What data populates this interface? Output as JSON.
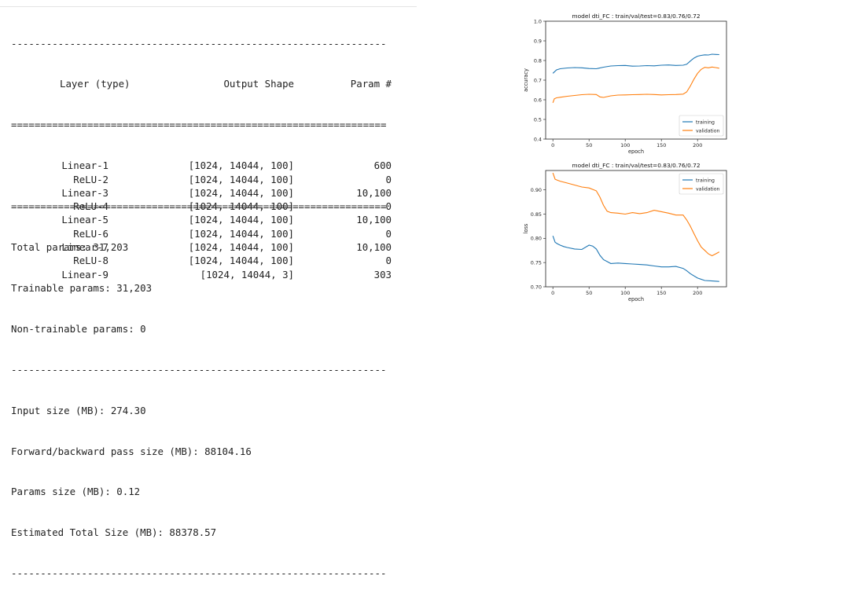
{
  "summary": {
    "sep_dash": "----------------------------------------------------------------",
    "sep_eq": "================================================================",
    "header": {
      "layer": "Layer (type)",
      "shape": "Output Shape",
      "param": "Param #"
    },
    "rows": [
      {
        "layer": "Linear-1",
        "shape": "[1024, 14044, 100]",
        "param": "600"
      },
      {
        "layer": "ReLU-2",
        "shape": "[1024, 14044, 100]",
        "param": "0"
      },
      {
        "layer": "Linear-3",
        "shape": "[1024, 14044, 100]",
        "param": "10,100"
      },
      {
        "layer": "ReLU-4",
        "shape": "[1024, 14044, 100]",
        "param": "0"
      },
      {
        "layer": "Linear-5",
        "shape": "[1024, 14044, 100]",
        "param": "10,100"
      },
      {
        "layer": "ReLU-6",
        "shape": "[1024, 14044, 100]",
        "param": "0"
      },
      {
        "layer": "Linear-7",
        "shape": "[1024, 14044, 100]",
        "param": "10,100"
      },
      {
        "layer": "ReLU-8",
        "shape": "[1024, 14044, 100]",
        "param": "0"
      },
      {
        "layer": "Linear-9",
        "shape": "[1024, 14044, 3]",
        "param": "303"
      }
    ],
    "totals": [
      "Total params: 31,203",
      "Trainable params: 31,203",
      "Non-trainable params: 0"
    ],
    "sizes": [
      "Input size (MB): 274.30",
      "Forward/backward pass size (MB): 88104.16",
      "Params size (MB): 0.12",
      "Estimated Total Size (MB): 88378.57"
    ]
  },
  "chart_data": [
    {
      "type": "line",
      "title": "model dti_FC : train/val/test=0.83/0.76/0.72",
      "xlabel": "epoch",
      "ylabel": "accuracy",
      "xlim": [
        -10,
        240
      ],
      "ylim": [
        0.4,
        1.0
      ],
      "xticks": [
        0,
        50,
        100,
        150,
        200
      ],
      "yticks": [
        0.4,
        0.5,
        0.6,
        0.7,
        0.8,
        0.9,
        1.0
      ],
      "legend_position": "lower-right",
      "series": [
        {
          "name": "training",
          "color": "#1f77b4",
          "x": [
            0,
            5,
            10,
            20,
            30,
            40,
            50,
            60,
            70,
            80,
            90,
            100,
            110,
            120,
            130,
            140,
            150,
            160,
            170,
            180,
            185,
            190,
            195,
            200,
            205,
            210,
            215,
            220,
            225,
            230
          ],
          "y": [
            0.735,
            0.752,
            0.758,
            0.762,
            0.764,
            0.763,
            0.759,
            0.758,
            0.766,
            0.772,
            0.774,
            0.775,
            0.771,
            0.772,
            0.774,
            0.773,
            0.776,
            0.777,
            0.775,
            0.776,
            0.781,
            0.797,
            0.812,
            0.822,
            0.826,
            0.829,
            0.828,
            0.832,
            0.831,
            0.83
          ]
        },
        {
          "name": "validation",
          "color": "#ff7f0e",
          "x": [
            0,
            2,
            5,
            10,
            20,
            30,
            40,
            50,
            60,
            65,
            70,
            80,
            90,
            100,
            110,
            120,
            130,
            140,
            150,
            160,
            170,
            180,
            185,
            190,
            195,
            200,
            205,
            210,
            215,
            220,
            225,
            230
          ],
          "y": [
            0.585,
            0.605,
            0.61,
            0.613,
            0.618,
            0.622,
            0.626,
            0.628,
            0.627,
            0.615,
            0.612,
            0.62,
            0.624,
            0.625,
            0.626,
            0.627,
            0.628,
            0.627,
            0.625,
            0.626,
            0.627,
            0.629,
            0.64,
            0.67,
            0.705,
            0.735,
            0.755,
            0.765,
            0.763,
            0.767,
            0.764,
            0.761
          ]
        }
      ]
    },
    {
      "type": "line",
      "title": "model dti_FC : train/val/test=0.83/0.76/0.72",
      "xlabel": "epoch",
      "ylabel": "loss",
      "xlim": [
        -10,
        240
      ],
      "ylim": [
        0.7,
        0.94
      ],
      "xticks": [
        0,
        50,
        100,
        150,
        200
      ],
      "yticks": [
        0.7,
        0.75,
        0.8,
        0.85,
        0.9
      ],
      "legend_position": "upper-right",
      "series": [
        {
          "name": "training",
          "color": "#1f77b4",
          "x": [
            0,
            3,
            6,
            10,
            15,
            20,
            30,
            40,
            50,
            55,
            60,
            65,
            70,
            75,
            80,
            90,
            100,
            110,
            120,
            130,
            140,
            150,
            160,
            170,
            180,
            185,
            190,
            200,
            210,
            220,
            230
          ],
          "y": [
            0.805,
            0.792,
            0.789,
            0.786,
            0.783,
            0.781,
            0.778,
            0.777,
            0.786,
            0.784,
            0.778,
            0.765,
            0.756,
            0.752,
            0.748,
            0.749,
            0.748,
            0.747,
            0.746,
            0.745,
            0.743,
            0.741,
            0.741,
            0.742,
            0.738,
            0.733,
            0.727,
            0.718,
            0.713,
            0.712,
            0.711
          ]
        },
        {
          "name": "validation",
          "color": "#ff7f0e",
          "x": [
            0,
            3,
            6,
            10,
            20,
            30,
            40,
            50,
            60,
            65,
            70,
            75,
            80,
            90,
            100,
            110,
            120,
            130,
            140,
            150,
            160,
            170,
            180,
            185,
            190,
            195,
            200,
            205,
            210,
            215,
            220,
            225,
            230
          ],
          "y": [
            0.935,
            0.922,
            0.92,
            0.918,
            0.914,
            0.91,
            0.906,
            0.904,
            0.898,
            0.885,
            0.868,
            0.856,
            0.853,
            0.852,
            0.85,
            0.853,
            0.851,
            0.853,
            0.858,
            0.855,
            0.852,
            0.848,
            0.848,
            0.838,
            0.825,
            0.81,
            0.795,
            0.782,
            0.775,
            0.768,
            0.764,
            0.768,
            0.772
          ]
        }
      ]
    }
  ]
}
